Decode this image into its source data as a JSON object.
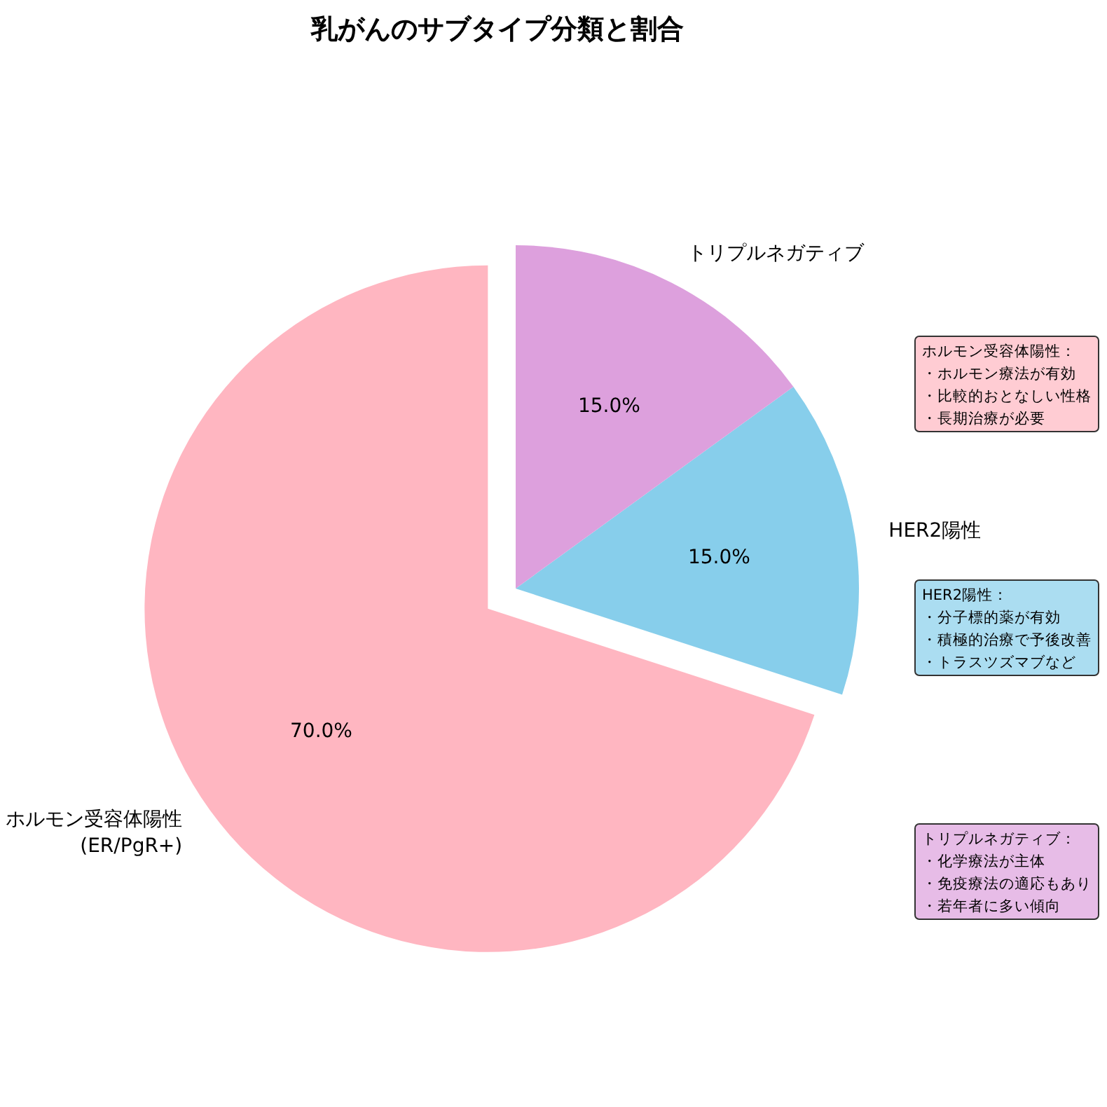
{
  "chart_data": {
    "type": "pie",
    "title": "乳がんのサブタイプ分類と割合",
    "categories": [
      "ホルモン受容体陽性\n(ER/PgR+)",
      "HER2陽性",
      "トリプルネガティブ"
    ],
    "values": [
      70,
      15,
      15
    ],
    "colors": [
      "#ffb6c1",
      "#87ceeb",
      "#dda0dd"
    ],
    "value_labels": [
      "70.0%",
      "15.0%",
      "15.0%"
    ],
    "annotations": [
      "ホルモン受容体陽性：",
      "・ホルモン療法が有効",
      "・比較的おとなしい性格",
      "・長期治療が必要",
      "HER2陽性：",
      "・分子標的薬が有効",
      "・積極的治療で予後改善",
      "・トラスツズマブなど",
      "トリプルネガティブ：",
      "・化学療法が主体",
      "・免疫療法の適応もあり",
      "・若年者に多い傾向"
    ]
  }
}
